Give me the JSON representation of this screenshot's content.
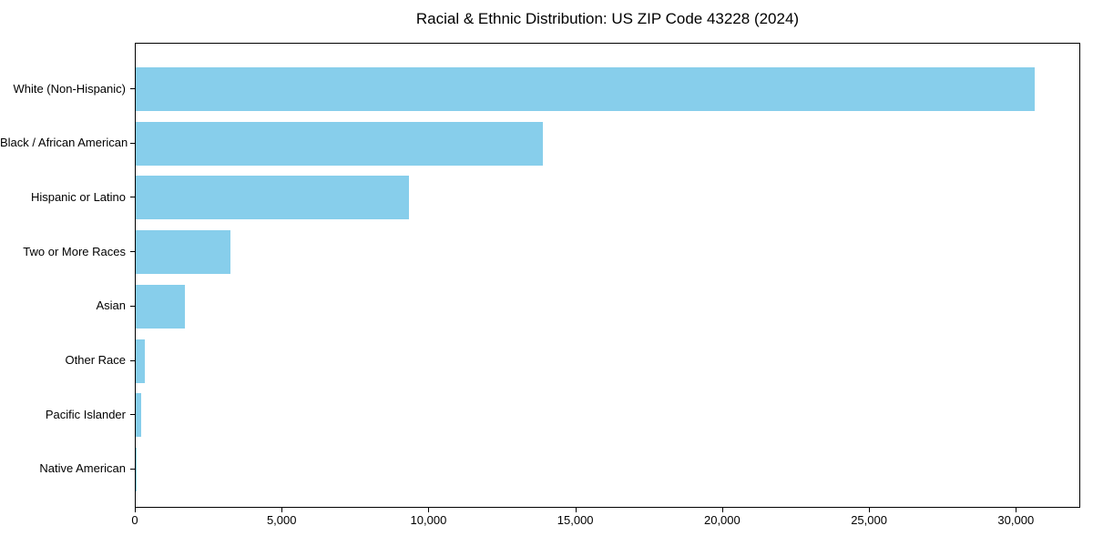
{
  "title": "Racial & Ethnic Distribution: US ZIP Code 43228 (2024)",
  "colors": {
    "bar": "#87CEEB",
    "axis": "#000000",
    "background": "#ffffff"
  },
  "chart_data": {
    "type": "bar",
    "orientation": "horizontal",
    "title": "Racial & Ethnic Distribution: US ZIP Code 43228 (2024)",
    "categories": [
      "White (Non-Hispanic)",
      "Black / African American",
      "Hispanic or Latino",
      "Two or More Races",
      "Asian",
      "Other Race",
      "Pacific Islander",
      "Native American"
    ],
    "values": [
      30600,
      13850,
      9290,
      3240,
      1670,
      310,
      180,
      35
    ],
    "xlabel": "",
    "ylabel": "",
    "xlim": [
      0,
      32130
    ],
    "xticks": [
      0,
      5000,
      10000,
      15000,
      20000,
      25000,
      30000
    ],
    "xtick_labels": [
      "0",
      "5,000",
      "10,000",
      "15,000",
      "20,000",
      "25,000",
      "30,000"
    ],
    "bar_color": "#87CEEB",
    "grid": false,
    "legend_position": "none"
  }
}
